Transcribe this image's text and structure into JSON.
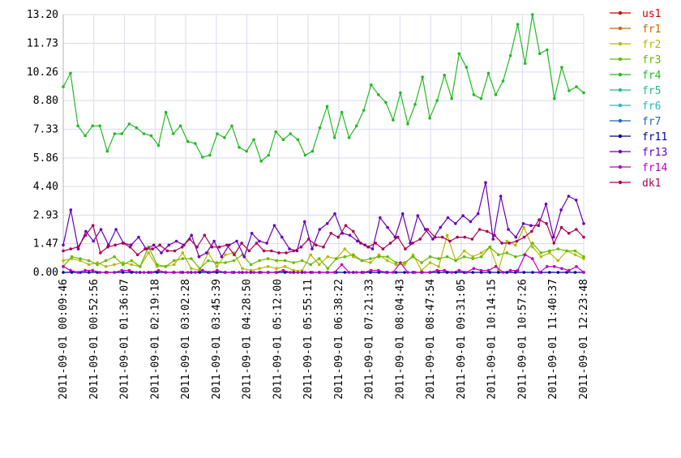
{
  "chart_data": {
    "type": "line",
    "title": "",
    "xlabel": "",
    "ylabel": "",
    "ylim": [
      0,
      13.2
    ],
    "yticks": [
      "0.00",
      "1.47",
      "2.93",
      "4.40",
      "5.86",
      "7.33",
      "8.80",
      "10.26",
      "11.73",
      "13.20"
    ],
    "xticks": [
      "2011-09-01 00:09:46",
      "2011-09-01 00:52:56",
      "2011-09-01 01:36:07",
      "2011-09-01 02:19:18",
      "2011-09-01 03:02:28",
      "2011-09-01 03:45:39",
      "2011-09-01 04:28:50",
      "2011-09-01 05:12:00",
      "2011-09-01 05:55:11",
      "2011-09-01 06:38:22",
      "2011-09-01 07:21:33",
      "2011-09-01 08:04:43",
      "2011-09-01 08:47:54",
      "2011-09-01 09:31:05",
      "2011-09-01 10:14:15",
      "2011-09-01 10:57:26",
      "2011-09-01 11:40:37",
      "2011-09-01 12:23:48"
    ],
    "grid": true,
    "legend_position": "right",
    "series": [
      {
        "name": "us1",
        "color": "#cc0000",
        "values": []
      },
      {
        "name": "fr1",
        "color": "#cc6600",
        "values": []
      },
      {
        "name": "fr2",
        "color": "#b8b800",
        "values": [
          0.6,
          0.7,
          0.6,
          0.4,
          0.5,
          0.3,
          0.4,
          0.5,
          0.4,
          0.3,
          1.0,
          0.3,
          0.3,
          0.4,
          1.0,
          0.2,
          0.1,
          1.0,
          0.3,
          0.9,
          1.0,
          0.2,
          0.1,
          0.2,
          0.3,
          0.2,
          0.3,
          0.1,
          0.1,
          0.9,
          0.4,
          0.8,
          0.7,
          1.2,
          0.8,
          0.6,
          0.5,
          0.9,
          0.6,
          0.4,
          0.4,
          0.9,
          0.1,
          0.5,
          0.3,
          1.9,
          0.6,
          1.1,
          0.8,
          1.0,
          1.3,
          0.1,
          1.6,
          1.4,
          2.3,
          1.3,
          0.8,
          1.0,
          0.6,
          1.1,
          0.9,
          0.7
        ]
      },
      {
        "name": "fr3",
        "color": "#66bb00",
        "values": [
          0.3,
          0.8,
          0.7,
          0.6,
          0.4,
          0.6,
          0.8,
          0.4,
          0.6,
          0.3,
          1.3,
          0.4,
          0.3,
          0.6,
          0.7,
          0.7,
          0.2,
          0.6,
          0.5,
          0.5,
          0.6,
          0.9,
          0.4,
          0.6,
          0.7,
          0.6,
          0.6,
          0.5,
          0.6,
          0.4,
          0.7,
          0.2,
          0.7,
          0.8,
          0.9,
          0.6,
          0.7,
          0.8,
          0.8,
          0.5,
          0.5,
          0.8,
          0.5,
          0.8,
          0.7,
          0.8,
          0.6,
          0.8,
          0.7,
          0.8,
          1.3,
          0.9,
          1.0,
          0.8,
          0.9,
          1.5,
          1.0,
          1.1,
          1.2,
          1.1,
          1.1,
          0.8
        ]
      },
      {
        "name": "fr4",
        "color": "#22bb22",
        "values": [
          9.5,
          10.2,
          7.5,
          7.0,
          7.5,
          7.5,
          6.2,
          7.1,
          7.1,
          7.6,
          7.4,
          7.1,
          7.0,
          6.5,
          8.2,
          7.1,
          7.5,
          6.7,
          6.6,
          5.9,
          6.0,
          7.1,
          6.9,
          7.5,
          6.4,
          6.2,
          6.8,
          5.7,
          6.0,
          7.2,
          6.8,
          7.1,
          6.8,
          6.0,
          6.2,
          7.4,
          8.5,
          6.9,
          8.2,
          6.9,
          7.5,
          8.3,
          9.6,
          9.1,
          8.7,
          7.8,
          9.2,
          7.6,
          8.6,
          10.0,
          7.9,
          8.8,
          10.1,
          8.9,
          11.2,
          10.5,
          9.1,
          8.9,
          10.2,
          9.1,
          9.8,
          11.1,
          12.7,
          10.7,
          13.2,
          11.2,
          11.4,
          8.9,
          10.5,
          9.3,
          9.5,
          9.2
        ]
      },
      {
        "name": "fr5",
        "color": "#22bb88",
        "values": []
      },
      {
        "name": "fr6",
        "color": "#22bbbb",
        "values": []
      },
      {
        "name": "fr7",
        "color": "#2266bb",
        "values": []
      },
      {
        "name": "fr11",
        "color": "#000099",
        "values": [
          0.0,
          0.0,
          0.0,
          0.0,
          0.0,
          0.0,
          0.0,
          0.0,
          0.0,
          0.0,
          0.0,
          0.0,
          0.0,
          0.0,
          0.0,
          0.0,
          0.0,
          0.0,
          0.0,
          0.0,
          0.0,
          0.0,
          0.0,
          0.0,
          0.0,
          0.0,
          0.0,
          0.0,
          0.0,
          0.0,
          0.0,
          0.0,
          0.0,
          0.0,
          0.0,
          0.0,
          0.0,
          0.0,
          0.0,
          0.0,
          0.0,
          0.0,
          0.0,
          0.0,
          0.0,
          0.0,
          0.0,
          0.0,
          0.0,
          0.0,
          0.0,
          0.0,
          0.0,
          0.0,
          0.0,
          0.0,
          0.0,
          0.0,
          0.0,
          0.0,
          0.0,
          0.0
        ]
      },
      {
        "name": "fr13",
        "color": "#6600bb",
        "values": [
          1.4,
          3.2,
          1.2,
          2.1,
          1.6,
          2.2,
          1.4,
          2.2,
          1.5,
          1.4,
          1.8,
          1.2,
          1.4,
          1.0,
          1.4,
          1.6,
          1.4,
          1.9,
          0.8,
          1.0,
          1.6,
          0.8,
          1.4,
          1.6,
          0.8,
          2.0,
          1.6,
          1.5,
          2.4,
          1.8,
          1.2,
          1.1,
          2.6,
          1.2,
          2.2,
          2.5,
          3.0,
          2.0,
          1.9,
          1.6,
          1.4,
          1.2,
          2.8,
          2.3,
          1.8,
          3.0,
          1.5,
          2.9,
          2.2,
          1.7,
          2.3,
          2.8,
          2.5,
          2.9,
          2.6,
          3.0,
          4.6,
          1.7,
          3.9,
          2.2,
          1.8,
          2.5,
          2.4,
          2.4,
          3.5,
          1.8,
          3.2,
          3.9,
          3.7,
          2.5
        ]
      },
      {
        "name": "fr14",
        "color": "#bb00bb",
        "values": [
          0.3,
          0.1,
          0.0,
          0.1,
          0.1,
          0.0,
          0.0,
          0.0,
          0.1,
          0.1,
          0.0,
          0.0,
          0.0,
          0.1,
          0.0,
          0.0,
          0.0,
          0.0,
          0.0,
          0.1,
          0.0,
          0.1,
          0.0,
          0.0,
          0.0,
          0.0,
          0.0,
          0.0,
          0.0,
          0.0,
          0.1,
          0.0,
          0.0,
          0.0,
          0.0,
          0.0,
          0.0,
          0.0,
          0.4,
          0.0,
          0.0,
          0.0,
          0.1,
          0.1,
          0.0,
          0.0,
          0.5,
          0.0,
          0.0,
          0.0,
          0.0,
          0.1,
          0.1,
          0.0,
          0.1,
          0.0,
          0.2,
          0.1,
          0.1,
          0.3,
          0.0,
          0.1,
          0.1,
          0.9,
          0.7,
          0.0,
          0.3,
          0.3,
          0.2,
          0.1,
          0.3,
          0.0
        ]
      },
      {
        "name": "dk1",
        "color": "#aa0055",
        "values": [
          1.1,
          1.2,
          1.3,
          1.9,
          2.4,
          1.0,
          1.3,
          1.4,
          1.5,
          1.3,
          0.9,
          1.2,
          1.2,
          1.4,
          1.1,
          1.1,
          1.3,
          1.7,
          1.3,
          1.9,
          1.3,
          1.3,
          1.4,
          0.9,
          1.5,
          1.1,
          1.5,
          1.1,
          1.1,
          1.0,
          1.0,
          1.1,
          1.3,
          1.7,
          1.4,
          1.3,
          2.0,
          1.8,
          2.4,
          2.1,
          1.5,
          1.3,
          1.5,
          1.2,
          1.5,
          1.8,
          1.2,
          1.5,
          1.7,
          2.2,
          1.8,
          1.8,
          1.6,
          1.8,
          1.8,
          1.7,
          2.2,
          2.1,
          1.9,
          1.5,
          1.5,
          1.6,
          1.8,
          2.1,
          2.7,
          2.5,
          1.5,
          2.3,
          2.0,
          2.2,
          1.8
        ]
      }
    ]
  }
}
